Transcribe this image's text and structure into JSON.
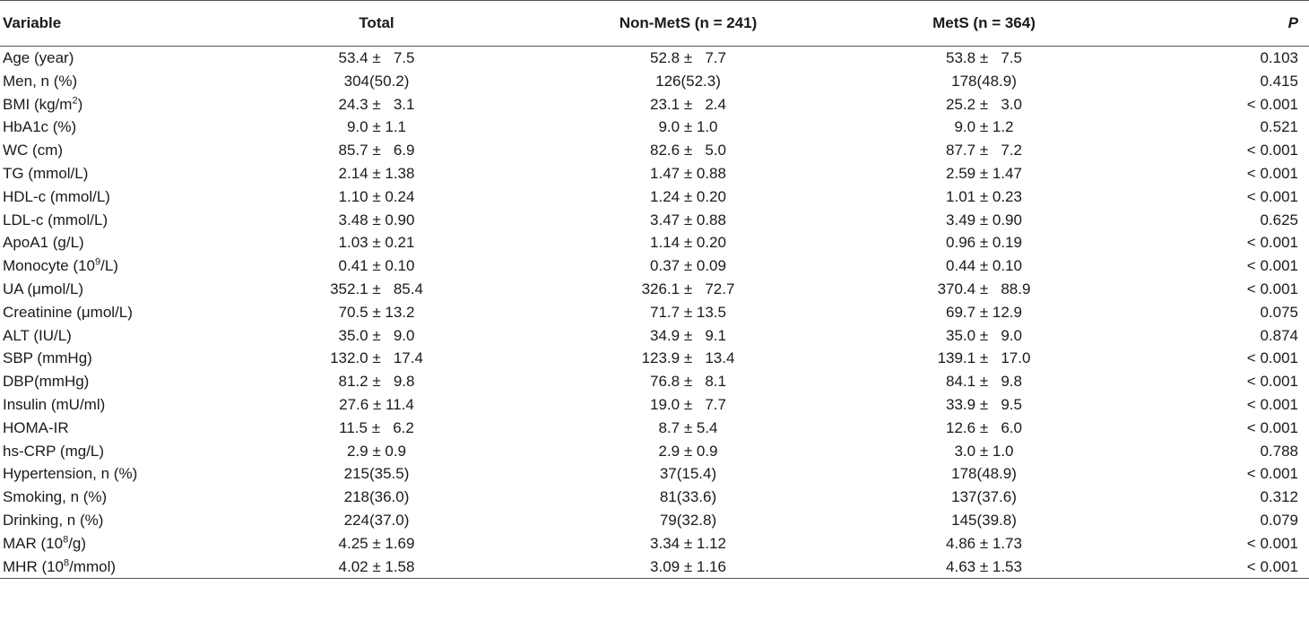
{
  "table": {
    "headers": [
      "Variable",
      "Total",
      "Non-MetS (n = 241)",
      "MetS (n = 364)",
      "P"
    ],
    "rows": [
      {
        "label": "Age (year)",
        "total": "53.4 ±   7.5",
        "nonmets": "52.8 ±   7.7",
        "mets": "53.8 ±   7.5",
        "p": "0.103"
      },
      {
        "label": "Men, n (%)",
        "total": "304(50.2)",
        "nonmets": "126(52.3)",
        "mets": "178(48.9)",
        "p": "0.415"
      },
      {
        "label_pre": "BMI (kg/m",
        "label_sup": "2",
        "label_post": ")",
        "total": "24.3 ±   3.1",
        "nonmets": "23.1 ±   2.4",
        "mets": "25.2 ±   3.0",
        "p": "< 0.001"
      },
      {
        "label": "HbA1c (%)",
        "total": "9.0 ± 1.1",
        "nonmets": "9.0 ± 1.0",
        "mets": "9.0 ± 1.2",
        "p": "0.521"
      },
      {
        "label": "WC (cm)",
        "total": "85.7 ±   6.9",
        "nonmets": "82.6 ±   5.0",
        "mets": "87.7 ±   7.2",
        "p": "< 0.001"
      },
      {
        "label": "TG (mmol/L)",
        "total": "2.14 ± 1.38",
        "nonmets": "1.47 ± 0.88",
        "mets": "2.59 ± 1.47",
        "p": "< 0.001"
      },
      {
        "label": "HDL-c (mmol/L)",
        "total": "1.10 ± 0.24",
        "nonmets": "1.24 ± 0.20",
        "mets": "1.01 ± 0.23",
        "p": "< 0.001"
      },
      {
        "label": "LDL-c (mmol/L)",
        "total": "3.48 ± 0.90",
        "nonmets": "3.47 ± 0.88",
        "mets": "3.49 ± 0.90",
        "p": "0.625"
      },
      {
        "label": "ApoA1 (g/L)",
        "total": "1.03 ± 0.21",
        "nonmets": "1.14 ± 0.20",
        "mets": "0.96 ± 0.19",
        "p": "< 0.001"
      },
      {
        "label_pre": "Monocyte (10",
        "label_sup": "9",
        "label_post": "/L)",
        "total": "0.41 ± 0.10",
        "nonmets": "0.37 ± 0.09",
        "mets": "0.44 ± 0.10",
        "p": "< 0.001"
      },
      {
        "label": "UA (μmol/L)",
        "total": "352.1 ±   85.4",
        "nonmets": "326.1 ±   72.7",
        "mets": "370.4 ±   88.9",
        "p": "< 0.001"
      },
      {
        "label": "Creatinine (μmol/L)",
        "total": "70.5 ± 13.2",
        "nonmets": "71.7 ± 13.5",
        "mets": "69.7 ± 12.9",
        "p": "0.075"
      },
      {
        "label": "ALT (IU/L)",
        "total": "35.0 ±   9.0",
        "nonmets": "34.9 ±   9.1",
        "mets": "35.0 ±   9.0",
        "p": "0.874"
      },
      {
        "label": "SBP (mmHg)",
        "total": "132.0 ±   17.4",
        "nonmets": "123.9 ±   13.4",
        "mets": "139.1 ±   17.0",
        "p": "< 0.001"
      },
      {
        "label": "DBP(mmHg)",
        "total": "81.2 ±   9.8",
        "nonmets": "76.8 ±   8.1",
        "mets": "84.1 ±   9.8",
        "p": "< 0.001"
      },
      {
        "label": "Insulin (mU/ml)",
        "total": "27.6 ± 11.4",
        "nonmets": "19.0 ±   7.7",
        "mets": "33.9 ±   9.5",
        "p": "< 0.001"
      },
      {
        "label": "HOMA-IR",
        "total": "11.5 ±   6.2",
        "nonmets": "8.7 ± 5.4",
        "mets": "12.6 ±   6.0",
        "p": "< 0.001"
      },
      {
        "label": "hs-CRP (mg/L)",
        "total": "2.9 ± 0.9",
        "nonmets": "2.9 ± 0.9",
        "mets": "3.0 ± 1.0",
        "p": "0.788"
      },
      {
        "label": "Hypertension, n (%)",
        "total": "215(35.5)",
        "nonmets": "37(15.4)",
        "mets": "178(48.9)",
        "p": "< 0.001"
      },
      {
        "label": "Smoking, n (%)",
        "total": "218(36.0)",
        "nonmets": "81(33.6)",
        "mets": "137(37.6)",
        "p": "0.312"
      },
      {
        "label": "Drinking, n (%)",
        "total": "224(37.0)",
        "nonmets": "79(32.8)",
        "mets": "145(39.8)",
        "p": "0.079"
      },
      {
        "label_pre": "MAR (10",
        "label_sup": "8",
        "label_post": "/g)",
        "total": "4.25 ± 1.69",
        "nonmets": "3.34 ± 1.12",
        "mets": "4.86 ± 1.73",
        "p": "< 0.001"
      },
      {
        "label_pre": "MHR (10",
        "label_sup": "8",
        "label_post": "/mmol)",
        "total": "4.02 ± 1.58",
        "nonmets": "3.09 ± 1.16",
        "mets": "4.63 ± 1.53",
        "p": "< 0.001"
      }
    ]
  }
}
